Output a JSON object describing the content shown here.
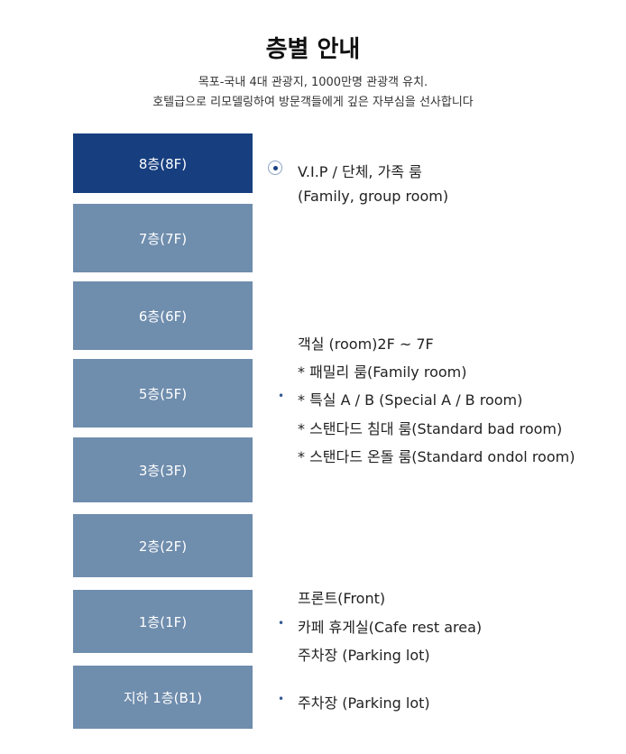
{
  "header": {
    "title": "층별 안내",
    "line1": "목포-국내 4대 관광지, 1000만명 관광객 유치.",
    "line2": "호텔급으로 리모델링하여 방문객들에게 깊은 자부심을 선사합니다"
  },
  "floors": [
    {
      "label": "8층(8F)",
      "active": true
    },
    {
      "label": "7층(7F)"
    },
    {
      "label": "6층(6F)"
    },
    {
      "label": "5층(5F)"
    },
    {
      "label": "3층(3F)"
    },
    {
      "label": "2층(2F)"
    },
    {
      "label": "1층(1F)"
    },
    {
      "label": "지하 1층(B1)"
    }
  ],
  "info": {
    "vip": [
      "V.I.P / 단체, 가족 룸",
      "(Family, group room)"
    ],
    "rooms": [
      "객실 (room)2F ~ 7F",
      "* 패밀리 룸(Family room)",
      "* 특실 A / B (Special A / B room)",
      "* 스탠다드 침대 룸(Standard bad room)",
      "* 스탠다드 온돌 룸(Standard ondol room)"
    ],
    "first": [
      "프론트(Front)",
      "카페 휴게실(Cafe rest area)",
      "주차장 (Parking lot)"
    ],
    "basement": [
      "주차장 (Parking lot)"
    ]
  },
  "icons": {
    "vip_marker": "radio-dot-icon",
    "bullet": "bullet-dot-icon"
  }
}
